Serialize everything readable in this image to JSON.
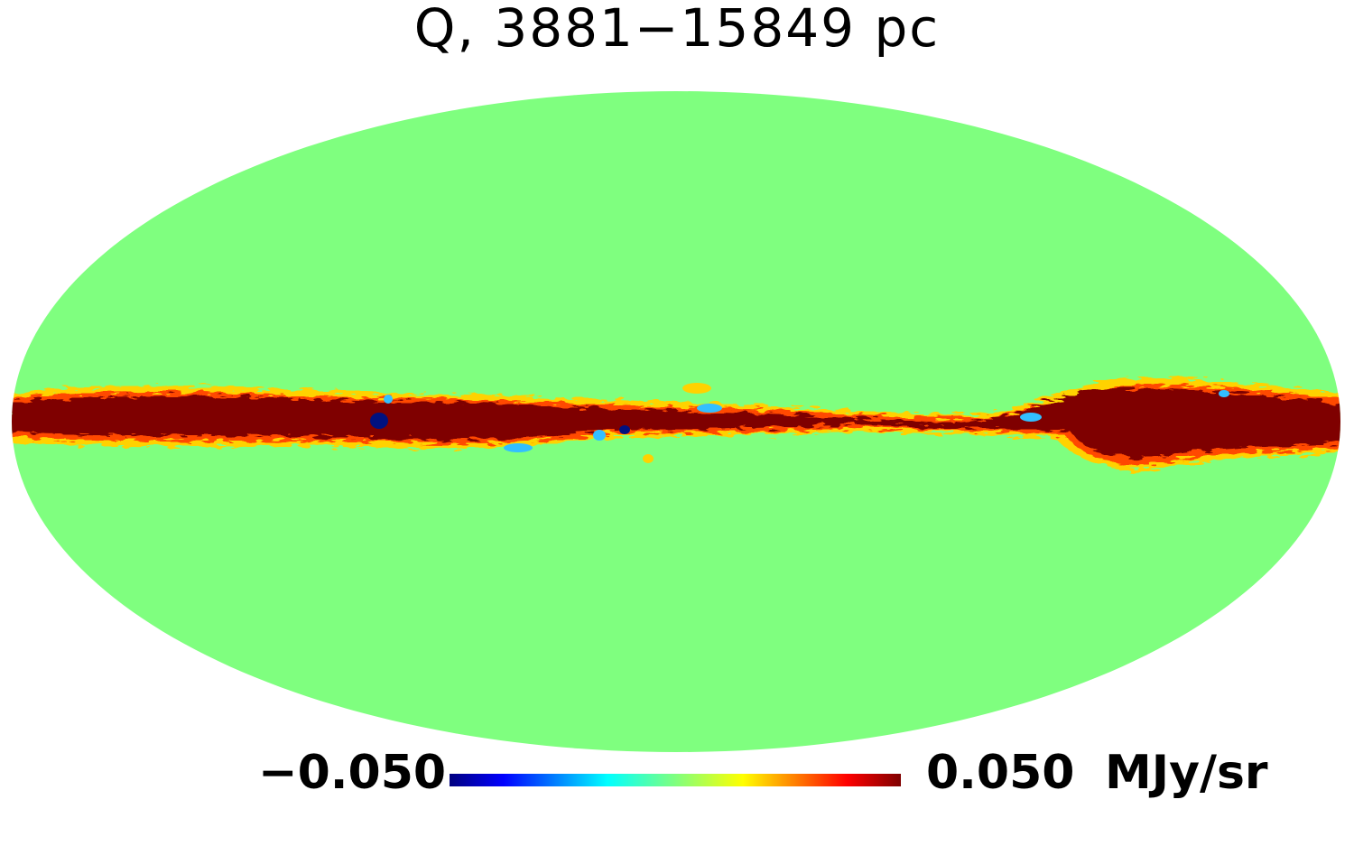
{
  "title": "Q, 3881−15849 pc",
  "colorbar": {
    "min_label": "−0.050",
    "max_label": "0.050",
    "unit": "MJy/sr",
    "stops": [
      "#00007f",
      "#0000ff",
      "#00ffff",
      "#7fff7f",
      "#ffff00",
      "#ff0000",
      "#7f0000"
    ]
  },
  "map": {
    "projection": "Mollweide",
    "background_value_color": "#7fff7f",
    "band_color_strong": "#7f0000",
    "band_color_edge": "#ffd200",
    "negative_patch_color": "#33bfff"
  }
}
